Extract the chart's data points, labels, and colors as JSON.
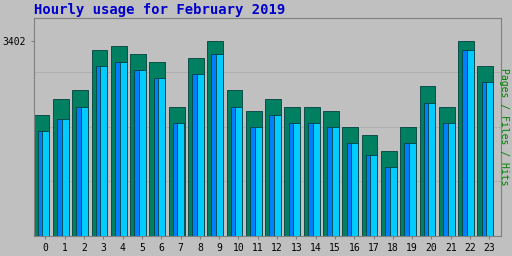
{
  "title": "Hourly usage for February 2019",
  "ylabel": "Pages / Files / Hits",
  "hours": [
    0,
    1,
    2,
    3,
    4,
    5,
    6,
    7,
    8,
    9,
    10,
    11,
    12,
    13,
    14,
    15,
    16,
    17,
    18,
    19,
    20,
    21,
    22,
    23
  ],
  "hits": [
    3310,
    3330,
    3340,
    3390,
    3395,
    3385,
    3375,
    3320,
    3380,
    3402,
    3340,
    3315,
    3330,
    3320,
    3320,
    3315,
    3295,
    3285,
    3265,
    3295,
    3345,
    3320,
    3402,
    3370
  ],
  "pages": [
    3290,
    3305,
    3320,
    3370,
    3375,
    3365,
    3355,
    3300,
    3360,
    3385,
    3320,
    3295,
    3310,
    3300,
    3300,
    3295,
    3275,
    3260,
    3245,
    3275,
    3325,
    3300,
    3390,
    3350
  ],
  "hits_color": "#008060",
  "pages_color": "#00CCFF",
  "files_color": "#0080FF",
  "bar_edge_color": "#004040",
  "bg_color": "#C0C0C0",
  "plot_bg_color": "#C0C0C0",
  "title_color": "#0000CC",
  "ylabel_color": "#008000",
  "tick_color": "#000000",
  "ytick_label": "3402",
  "ylim_min": 3160,
  "ylim_max": 3430,
  "title_fontsize": 10,
  "ylabel_fontsize": 7
}
